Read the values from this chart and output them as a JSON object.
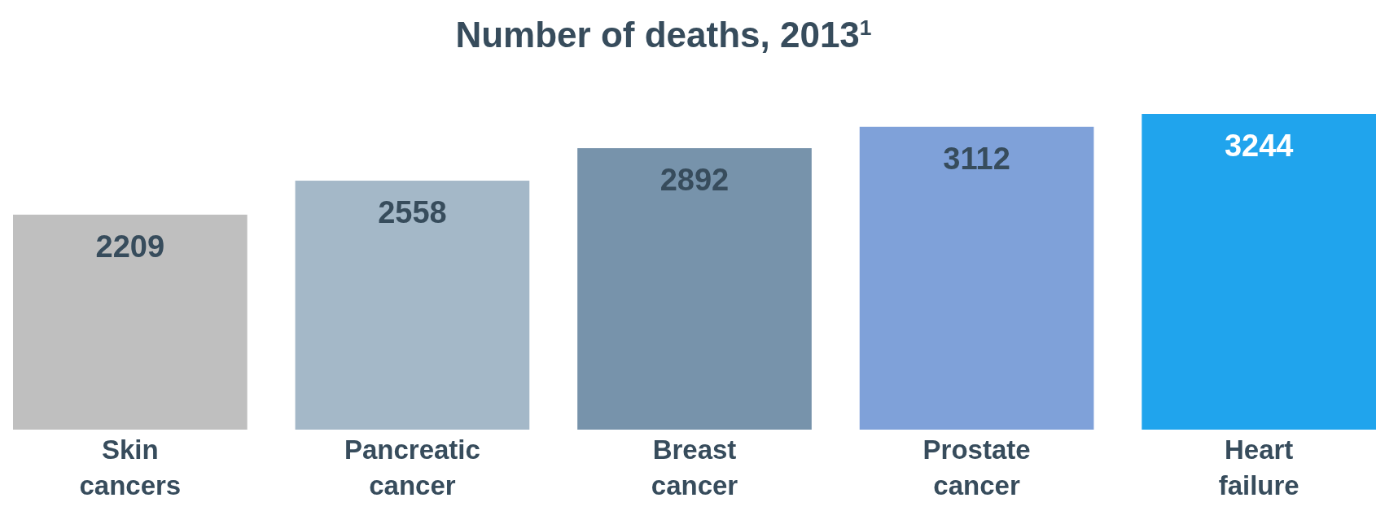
{
  "chart_data": {
    "type": "bar",
    "title": "Number of deaths, 2013$^{1}$",
    "categories": [
      "Skin cancers",
      "Pancreatic cancer",
      "Breast cancer",
      "Prostate cancer",
      "Heart failure"
    ],
    "values": [
      2209,
      2558,
      2892,
      3112,
      3244
    ],
    "colors": [
      "#bfbfbf",
      "#a4b8c8",
      "#7793ab",
      "#7fa1d9",
      "#20a4ed"
    ],
    "data_labels": true
  }
}
